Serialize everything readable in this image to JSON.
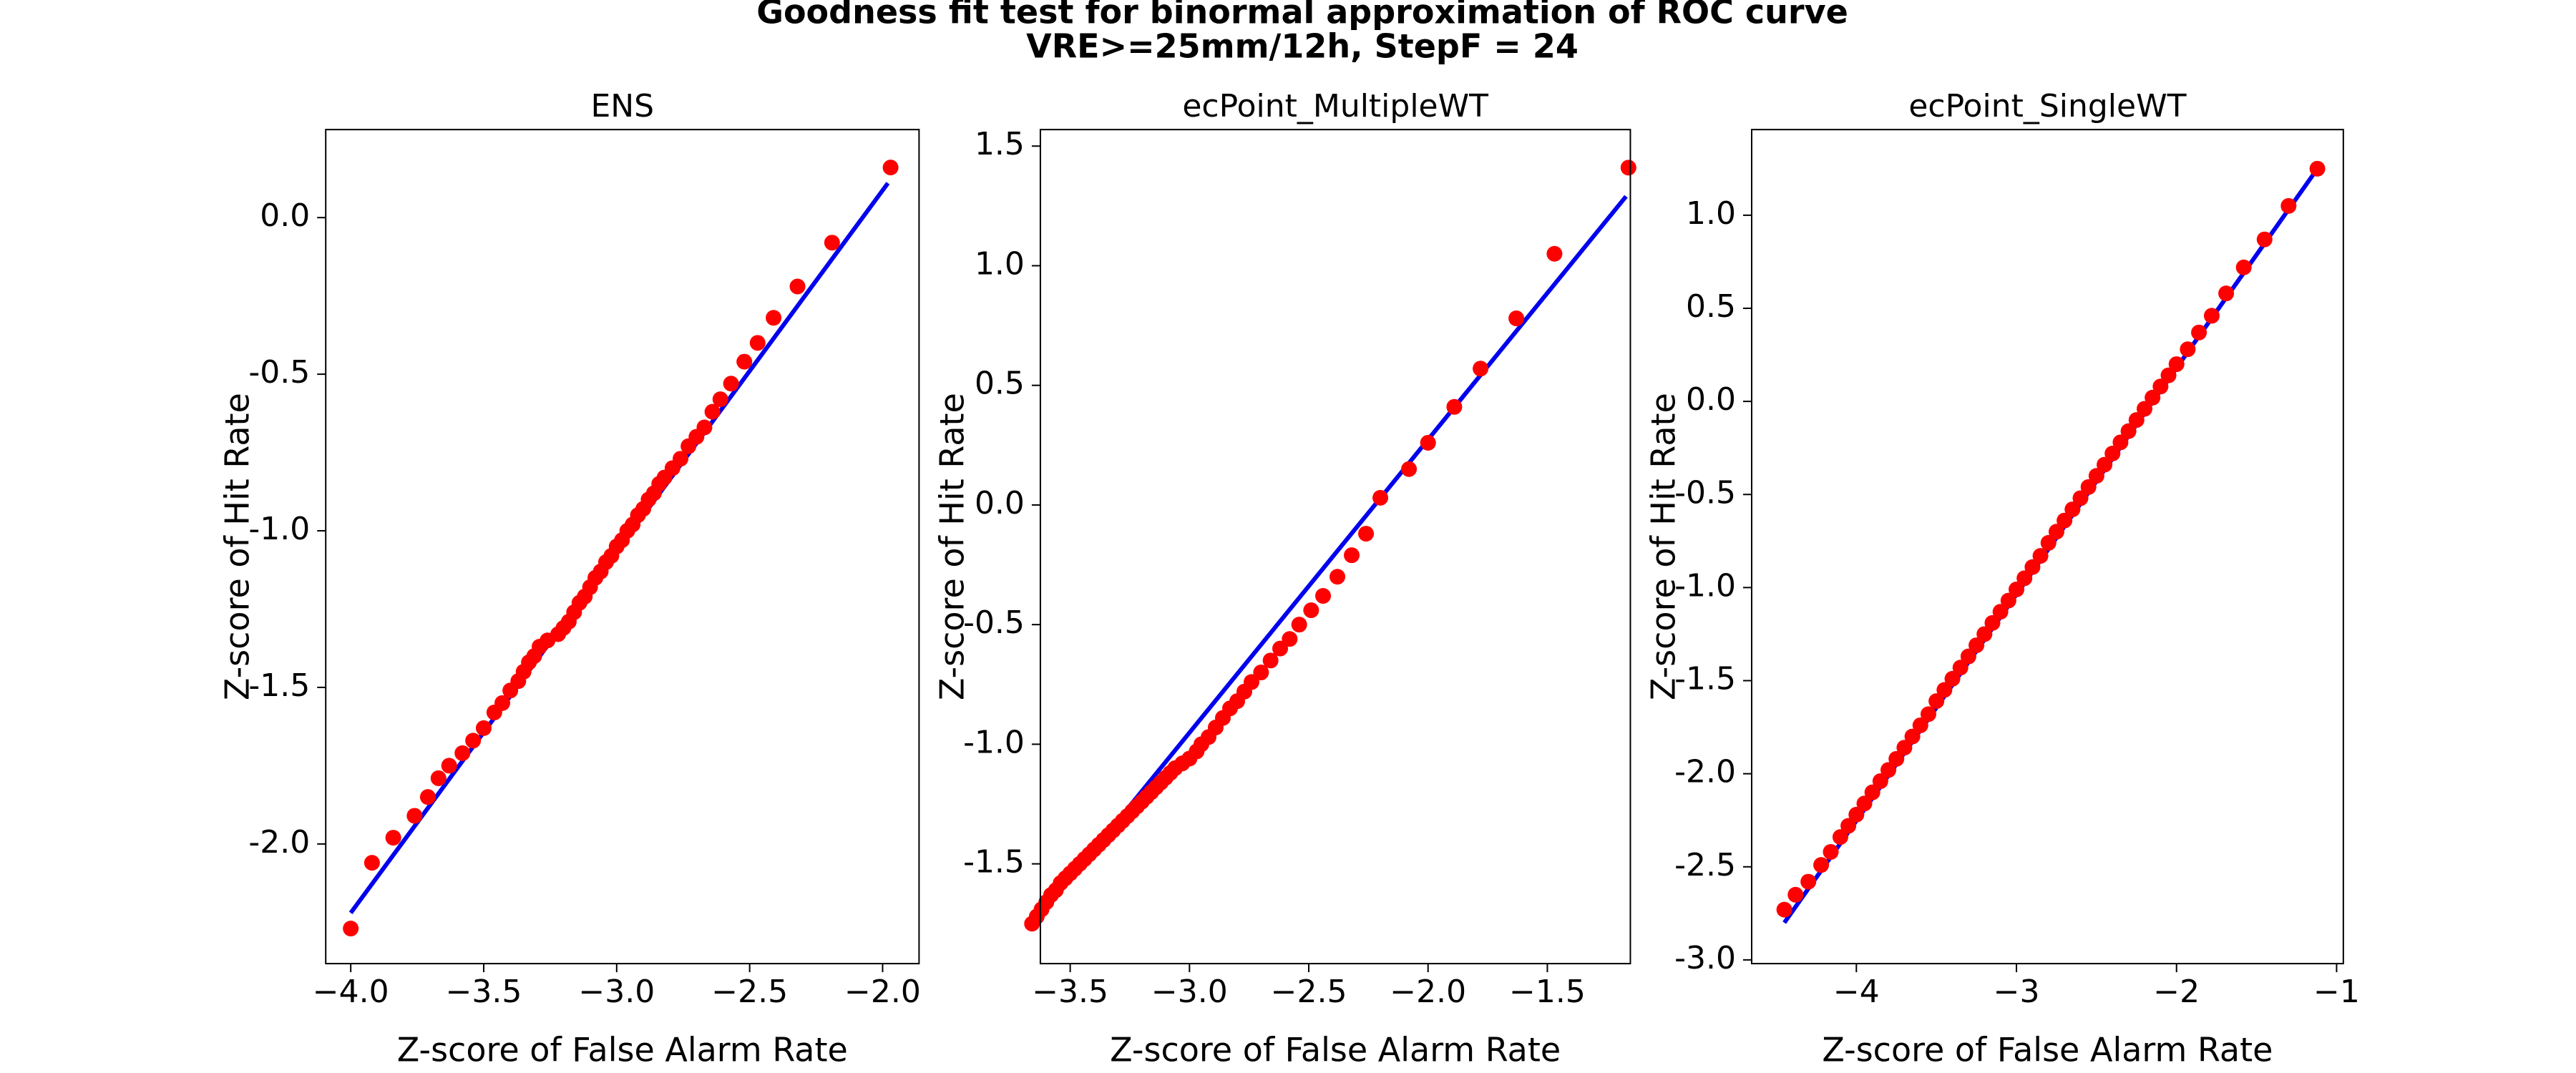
{
  "title": "Goodness fit test for binormal approximation of ROC curve",
  "subtitle": "VRE>=25mm/12h, StepF = 24",
  "chart_data": [
    {
      "type": "scatter",
      "title": "ENS",
      "xlabel": "Z-score of False Alarm Rate",
      "ylabel": "Z-score of Hit Rate",
      "xlim": [
        -4.094,
        -1.863
      ],
      "ylim": [
        -2.382,
        0.281
      ],
      "xticks": [
        {
          "value": -4,
          "label": "−4.0"
        },
        {
          "value": -3.5,
          "label": "−3.5"
        },
        {
          "value": -3,
          "label": "−3.0"
        },
        {
          "value": -2.5,
          "label": "−2.5"
        },
        {
          "value": -2,
          "label": "−2.0"
        }
      ],
      "yticks": [
        {
          "value": -2,
          "label": "-2.0"
        },
        -1.5,
        {
          "value": -1,
          "label": "-1.0"
        },
        -0.5,
        {
          "value": 0,
          "label": "0.0"
        }
      ],
      "points": {
        "color": "#ff0000",
        "x": [
          -4.0,
          -3.92,
          -3.84,
          -3.76,
          -3.71,
          -3.67,
          -3.63,
          -3.58,
          -3.54,
          -3.5,
          -3.46,
          -3.43,
          -3.4,
          -3.37,
          -3.35,
          -3.33,
          -3.31,
          -3.29,
          -3.26,
          -3.22,
          -3.2,
          -3.18,
          -3.16,
          -3.14,
          -3.12,
          -3.1,
          -3.08,
          -3.06,
          -3.04,
          -3.02,
          -3.0,
          -2.98,
          -2.96,
          -2.94,
          -2.92,
          -2.9,
          -2.88,
          -2.86,
          -2.84,
          -2.82,
          -2.79,
          -2.76,
          -2.73,
          -2.7,
          -2.67,
          -2.64,
          -2.61,
          -2.57,
          -2.52,
          -2.47,
          -2.41,
          -2.32,
          -2.19,
          -1.97
        ],
        "y": [
          -2.27,
          -2.06,
          -1.98,
          -1.91,
          -1.85,
          -1.79,
          -1.75,
          -1.71,
          -1.67,
          -1.63,
          -1.58,
          -1.55,
          -1.51,
          -1.48,
          -1.45,
          -1.42,
          -1.4,
          -1.37,
          -1.35,
          -1.33,
          -1.31,
          -1.29,
          -1.26,
          -1.23,
          -1.21,
          -1.18,
          -1.15,
          -1.13,
          -1.1,
          -1.08,
          -1.05,
          -1.03,
          -1.0,
          -0.98,
          -0.95,
          -0.93,
          -0.9,
          -0.88,
          -0.85,
          -0.83,
          -0.8,
          -0.77,
          -0.73,
          -0.7,
          -0.67,
          -0.62,
          -0.58,
          -0.53,
          -0.46,
          -0.4,
          -0.32,
          -0.22,
          -0.08,
          0.16
        ]
      },
      "fit_line": {
        "color": "#0000ee",
        "x": [
          -4.0,
          -1.98
        ],
        "y": [
          -2.22,
          0.11
        ]
      }
    },
    {
      "type": "scatter",
      "title": "ecPoint_MultipleWT",
      "xlabel": "Z-score of False Alarm Rate",
      "ylabel": "Z-score of Hit Rate",
      "xlim": [
        -3.625,
        -1.152
      ],
      "ylim": [
        -1.917,
        1.569
      ],
      "xticks": [
        {
          "value": -3.5,
          "label": "−3.5"
        },
        {
          "value": -3,
          "label": "−3.0"
        },
        {
          "value": -2.5,
          "label": "−2.5"
        },
        {
          "value": -2,
          "label": "−2.0"
        },
        {
          "value": -1.5,
          "label": "−1.5"
        }
      ],
      "yticks": [
        -1.5,
        {
          "value": -1,
          "label": "-1.0"
        },
        -0.5,
        {
          "value": 0,
          "label": "0.0"
        },
        0.5,
        {
          "value": 1,
          "label": "1.0"
        },
        1.5
      ],
      "points": {
        "color": "#ff0000",
        "x": [
          -3.66,
          -3.64,
          -3.62,
          -3.6,
          -3.58,
          -3.56,
          -3.54,
          -3.52,
          -3.5,
          -3.48,
          -3.46,
          -3.44,
          -3.42,
          -3.4,
          -3.38,
          -3.36,
          -3.34,
          -3.32,
          -3.3,
          -3.28,
          -3.26,
          -3.24,
          -3.22,
          -3.2,
          -3.18,
          -3.16,
          -3.14,
          -3.12,
          -3.1,
          -3.08,
          -3.06,
          -3.03,
          -3.0,
          -2.97,
          -2.95,
          -2.92,
          -2.89,
          -2.86,
          -2.83,
          -2.8,
          -2.77,
          -2.74,
          -2.7,
          -2.66,
          -2.62,
          -2.58,
          -2.54,
          -2.49,
          -2.44,
          -2.38,
          -2.32,
          -2.26,
          -2.2,
          -2.08,
          -2.0,
          -1.89,
          -1.78,
          -1.63,
          -1.47,
          -1.16
        ],
        "y": [
          -1.75,
          -1.72,
          -1.69,
          -1.66,
          -1.63,
          -1.61,
          -1.58,
          -1.56,
          -1.54,
          -1.52,
          -1.5,
          -1.48,
          -1.46,
          -1.44,
          -1.42,
          -1.4,
          -1.38,
          -1.36,
          -1.34,
          -1.32,
          -1.3,
          -1.28,
          -1.26,
          -1.24,
          -1.22,
          -1.2,
          -1.18,
          -1.16,
          -1.14,
          -1.12,
          -1.1,
          -1.08,
          -1.06,
          -1.03,
          -1.0,
          -0.97,
          -0.93,
          -0.89,
          -0.85,
          -0.82,
          -0.78,
          -0.74,
          -0.7,
          -0.65,
          -0.6,
          -0.56,
          -0.5,
          -0.44,
          -0.38,
          -0.3,
          -0.21,
          -0.12,
          0.03,
          0.15,
          0.26,
          0.41,
          0.57,
          0.78,
          1.05,
          1.41
        ]
      },
      "fit_line": {
        "color": "#0000ee",
        "x": [
          -3.66,
          -1.17
        ],
        "y": [
          -1.76,
          1.29
        ]
      }
    },
    {
      "type": "scatter",
      "title": "ecPoint_SingleWT",
      "xlabel": "Z-score of False Alarm Rate",
      "ylabel": "Z-score of Hit Rate",
      "xlim": [
        -4.654,
        -0.958
      ],
      "ylim": [
        -3.02,
        1.46
      ],
      "xticks": [
        {
          "value": -4,
          "label": "−4"
        },
        {
          "value": -3,
          "label": "−3"
        },
        {
          "value": -2,
          "label": "−2"
        },
        {
          "value": -1,
          "label": "−1"
        }
      ],
      "yticks": [
        {
          "value": -3,
          "label": "-3.0"
        },
        -2.5,
        {
          "value": -2,
          "label": "-2.0"
        },
        -1.5,
        {
          "value": -1,
          "label": "-1.0"
        },
        -0.5,
        {
          "value": 0,
          "label": "0.0"
        },
        0.5,
        {
          "value": 1,
          "label": "1.0"
        }
      ],
      "points": {
        "color": "#ff0000",
        "x": [
          -4.45,
          -4.38,
          -4.3,
          -4.22,
          -4.16,
          -4.1,
          -4.05,
          -4.0,
          -3.95,
          -3.9,
          -3.85,
          -3.8,
          -3.75,
          -3.7,
          -3.65,
          -3.6,
          -3.55,
          -3.5,
          -3.45,
          -3.4,
          -3.35,
          -3.3,
          -3.25,
          -3.2,
          -3.15,
          -3.1,
          -3.05,
          -3.0,
          -2.95,
          -2.9,
          -2.85,
          -2.8,
          -2.75,
          -2.7,
          -2.65,
          -2.6,
          -2.55,
          -2.5,
          -2.45,
          -2.4,
          -2.35,
          -2.3,
          -2.25,
          -2.2,
          -2.15,
          -2.1,
          -2.05,
          -2.0,
          -1.93,
          -1.86,
          -1.78,
          -1.69,
          -1.58,
          -1.45,
          -1.3,
          -1.12
        ],
        "y": [
          -2.73,
          -2.65,
          -2.58,
          -2.49,
          -2.42,
          -2.34,
          -2.28,
          -2.22,
          -2.16,
          -2.1,
          -2.04,
          -1.98,
          -1.92,
          -1.86,
          -1.8,
          -1.74,
          -1.68,
          -1.61,
          -1.55,
          -1.49,
          -1.43,
          -1.37,
          -1.31,
          -1.25,
          -1.19,
          -1.13,
          -1.07,
          -1.01,
          -0.95,
          -0.89,
          -0.83,
          -0.76,
          -0.7,
          -0.64,
          -0.58,
          -0.52,
          -0.46,
          -0.4,
          -0.34,
          -0.28,
          -0.22,
          -0.16,
          -0.1,
          -0.04,
          0.02,
          0.08,
          0.14,
          0.2,
          0.28,
          0.37,
          0.46,
          0.58,
          0.72,
          0.87,
          1.05,
          1.25
        ]
      },
      "fit_line": {
        "color": "#0000ee",
        "x": [
          -4.45,
          -1.12
        ],
        "y": [
          -2.8,
          1.25
        ]
      }
    }
  ]
}
